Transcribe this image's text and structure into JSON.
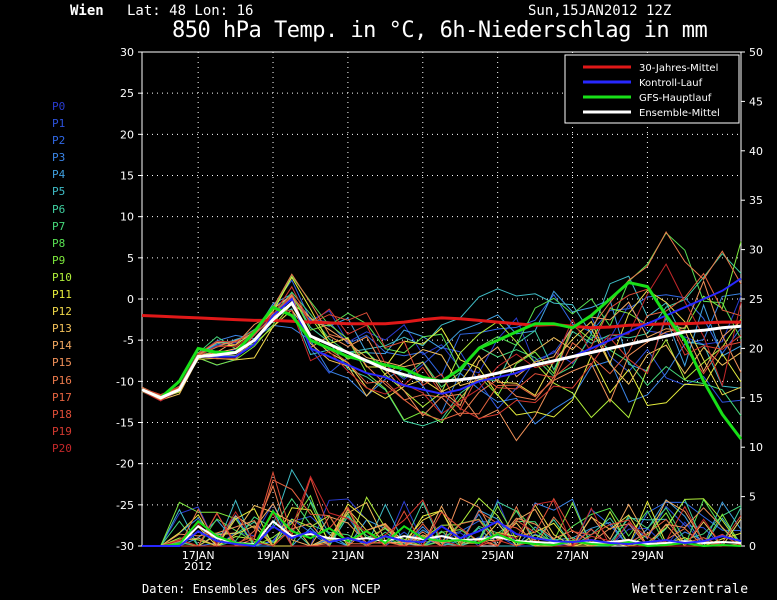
{
  "header": {
    "location": "Wien",
    "coords": "Lat: 48 Lon: 16",
    "run": "Sun,15JAN2012 12Z",
    "title": "850 hPa Temp. in °C, 6h-Niederschlag in mm"
  },
  "footer": {
    "source": "Daten: Ensembles des GFS von NCEP",
    "brand": "Wetterzentrale"
  },
  "members": [
    {
      "label": "P0",
      "color": "#2a3cd0"
    },
    {
      "label": "P1",
      "color": "#2d52dc"
    },
    {
      "label": "P2",
      "color": "#3068e6"
    },
    {
      "label": "P3",
      "color": "#3a84e6"
    },
    {
      "label": "P4",
      "color": "#3fa0e0"
    },
    {
      "label": "P5",
      "color": "#3fbcc6"
    },
    {
      "label": "P6",
      "color": "#3fd0a0"
    },
    {
      "label": "P7",
      "color": "#46d87a"
    },
    {
      "label": "P8",
      "color": "#58e052"
    },
    {
      "label": "P9",
      "color": "#7de83c"
    },
    {
      "label": "P10",
      "color": "#b0ef3a"
    },
    {
      "label": "P11",
      "color": "#e6ee3c"
    },
    {
      "label": "P12",
      "color": "#f0d84a"
    },
    {
      "label": "P13",
      "color": "#f2c05a"
    },
    {
      "label": "P14",
      "color": "#f2a860"
    },
    {
      "label": "P15",
      "color": "#f09058"
    },
    {
      "label": "P16",
      "color": "#ec7a4c"
    },
    {
      "label": "P17",
      "color": "#e66440"
    },
    {
      "label": "P18",
      "color": "#e04e38"
    },
    {
      "label": "P19",
      "color": "#d43a30"
    },
    {
      "label": "P20",
      "color": "#c4282a"
    }
  ],
  "chart_data": {
    "type": "line",
    "title": "850 hPa Temp. in °C, 6h-Niederschlag in mm",
    "xlabel": "",
    "ylabel_left": "°C",
    "ylabel_right": "mm",
    "ylim_left": [
      -30,
      30
    ],
    "ylim_right": [
      0,
      50
    ],
    "yticks_left": [
      30,
      25,
      20,
      15,
      10,
      5,
      0,
      -5,
      -10,
      -15,
      -20,
      -25,
      -30
    ],
    "yticks_right": [
      50,
      45,
      40,
      35,
      30,
      25,
      20,
      15,
      10,
      5,
      0
    ],
    "x_tick_labels": [
      "17JAN",
      "19JAN",
      "21JAN",
      "23JAN",
      "25JAN",
      "27JAN",
      "29JAN"
    ],
    "x_tick_days": [
      1.5,
      3.5,
      5.5,
      7.5,
      9.5,
      11.5,
      13.5
    ],
    "x_sub_label": "2012",
    "x_range_days": [
      0,
      16
    ],
    "grid": true,
    "legend_position": "top-right",
    "legend": [
      {
        "name": "30-Jahres-Mittel",
        "color": "#e01818"
      },
      {
        "name": "Kontroll-Lauf",
        "color": "#2828ff"
      },
      {
        "name": "GFS-Hauptlauf",
        "color": "#18e018"
      },
      {
        "name": "Ensemble-Mittel",
        "color": "#ffffff"
      }
    ],
    "series_days": [
      0,
      0.5,
      1,
      1.5,
      2,
      2.5,
      3,
      3.5,
      4,
      4.5,
      5,
      5.5,
      6,
      6.5,
      7,
      7.5,
      8,
      8.5,
      9,
      9.5,
      10,
      10.5,
      11,
      11.5,
      12,
      12.5,
      13,
      13.5,
      14,
      14.5,
      15,
      15.5,
      16
    ],
    "series": [
      {
        "name": "30-Jahres-Mittel",
        "color": "#e01818",
        "width": 3,
        "values": [
          -2,
          -2.1,
          -2.2,
          -2.3,
          -2.4,
          -2.5,
          -2.6,
          -2.6,
          -2.7,
          -2.8,
          -2.9,
          -3,
          -3,
          -3,
          -2.8,
          -2.5,
          -2.3,
          -2.4,
          -2.6,
          -2.8,
          -3,
          -3.2,
          -3.1,
          -3.3,
          -3.5,
          -3.4,
          -3.2,
          -3.1,
          -3,
          -3,
          -2.9,
          -2.8,
          -2.8
        ]
      },
      {
        "name": "Kontroll-Lauf",
        "color": "#2828ff",
        "width": 2,
        "values": [
          -11,
          -12,
          -11,
          -7,
          -7,
          -7,
          -5.5,
          -2,
          0,
          -6,
          -7,
          -8,
          -9,
          -9.5,
          -10.5,
          -11,
          -11.5,
          -11,
          -10,
          -9.5,
          -9,
          -8,
          -7.5,
          -7,
          -6,
          -5,
          -4,
          -3,
          -2,
          -1,
          0,
          1,
          2.5
        ]
      },
      {
        "name": "GFS-Hauptlauf",
        "color": "#18e018",
        "width": 3,
        "values": [
          -11,
          -12,
          -10,
          -6,
          -6.5,
          -6.5,
          -4,
          -1,
          -2,
          -5,
          -6,
          -7,
          -7.5,
          -8,
          -8.5,
          -9.5,
          -10,
          -8.5,
          -6,
          -5,
          -4,
          -3,
          -3,
          -3.5,
          -2,
          0,
          2,
          1.5,
          -2,
          -5,
          -10,
          -14,
          -17
        ]
      },
      {
        "name": "Ensemble-Mittel",
        "color": "#ffffff",
        "width": 3,
        "values": [
          -11,
          -12,
          -11,
          -7,
          -6.8,
          -6.5,
          -5,
          -2.5,
          -0.5,
          -4.5,
          -5.5,
          -6.5,
          -7.5,
          -8.5,
          -9.2,
          -9.8,
          -10,
          -9.8,
          -9.5,
          -9,
          -8.5,
          -8,
          -7.5,
          -7,
          -6.5,
          -6,
          -5.5,
          -5,
          -4.5,
          -4,
          -3.8,
          -3.5,
          -3.3
        ]
      }
    ],
    "precip_series": [
      {
        "name": "Ensemble-Mittel",
        "color": "#ffffff",
        "values": [
          0,
          0,
          0.1,
          2,
          0.8,
          0.3,
          0.2,
          2.5,
          1,
          1.2,
          0.8,
          0.6,
          0.8,
          0.5,
          1,
          0.7,
          1,
          0.6,
          0.7,
          0.9,
          0.5,
          0.4,
          0.3,
          0.5,
          0.3,
          0.4,
          0.6,
          0.2,
          0.3,
          0.5,
          0.3,
          0.4,
          0.3
        ]
      },
      {
        "name": "GFS-Hauptlauf",
        "color": "#18e018",
        "values": [
          0,
          0,
          0.2,
          2.5,
          1,
          0.3,
          0.1,
          3.5,
          1.5,
          0.8,
          1.8,
          0.5,
          1.5,
          0.3,
          2,
          0.8,
          0.5,
          0.6,
          0.3,
          1.2,
          0.4,
          0.2,
          0.1,
          0.5,
          0.2,
          0.1,
          0.4,
          0,
          0.1,
          0.3,
          0,
          0.1,
          0
        ]
      },
      {
        "name": "Kontroll-Lauf",
        "color": "#2828ff",
        "values": [
          0,
          0,
          0,
          1.5,
          0.5,
          0.2,
          0,
          2,
          0.8,
          1.5,
          0.4,
          0.8,
          0.3,
          1,
          0.5,
          0.4,
          2,
          0.8,
          1.5,
          2.5,
          1.2,
          0.8,
          0.5,
          0.4,
          0.6,
          0.3,
          0.2,
          0.4,
          0.6,
          0.3,
          0.5,
          1,
          0.5
        ]
      }
    ]
  }
}
